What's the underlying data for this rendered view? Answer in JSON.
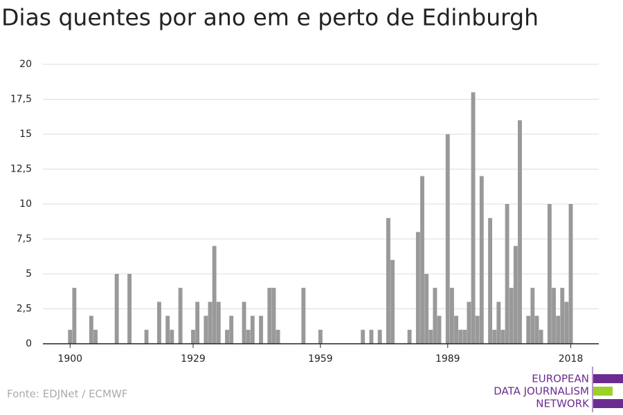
{
  "chart_data": {
    "type": "bar",
    "title": "Dias quentes por ano em e perto de Edinburgh",
    "source": "Fonte: EDJNet / ECMWF",
    "logo": [
      "EUROPEAN",
      "DATA JOURNALISM",
      "NETWORK"
    ],
    "color": "#999999",
    "grid": true,
    "x": [
      1900,
      1901,
      1905,
      1906,
      1911,
      1914,
      1918,
      1921,
      1923,
      1924,
      1926,
      1929,
      1930,
      1932,
      1933,
      1934,
      1935,
      1937,
      1938,
      1941,
      1942,
      1943,
      1945,
      1947,
      1948,
      1949,
      1955,
      1959,
      1969,
      1971,
      1973,
      1975,
      1976,
      1980,
      1982,
      1983,
      1984,
      1985,
      1986,
      1987,
      1989,
      1990,
      1991,
      1992,
      1993,
      1994,
      1995,
      1996,
      1997,
      1999,
      2000,
      2001,
      2002,
      2003,
      2004,
      2005,
      2006,
      2008,
      2009,
      2010,
      2011,
      2013,
      2014,
      2015,
      2016,
      2017,
      2018
    ],
    "values": [
      1,
      4,
      2,
      1,
      5,
      5,
      1,
      3,
      2,
      1,
      4,
      1,
      3,
      2,
      3,
      7,
      3,
      1,
      2,
      3,
      1,
      2,
      2,
      4,
      4,
      1,
      4,
      1,
      1,
      1,
      1,
      9,
      6,
      1,
      8,
      12,
      5,
      1,
      4,
      2,
      15,
      4,
      2,
      1,
      1,
      3,
      18,
      2,
      12,
      9,
      1,
      3,
      1,
      10,
      4,
      7,
      16,
      2,
      4,
      2,
      1,
      10,
      4,
      2,
      4,
      3,
      10
    ],
    "xlim": [
      1893.6,
      2024.6
    ],
    "xticks": [
      1900,
      1929,
      1959,
      1989,
      2018
    ],
    "ylim": [
      0,
      20
    ],
    "yticks": [
      0,
      {
        "value": 2.5,
        "label": "2,5"
      },
      5,
      {
        "value": 7.5,
        "label": "7,5"
      },
      10,
      {
        "value": 12.5,
        "label": "12,5"
      },
      15,
      {
        "value": 17.5,
        "label": "17,5"
      },
      20
    ]
  }
}
